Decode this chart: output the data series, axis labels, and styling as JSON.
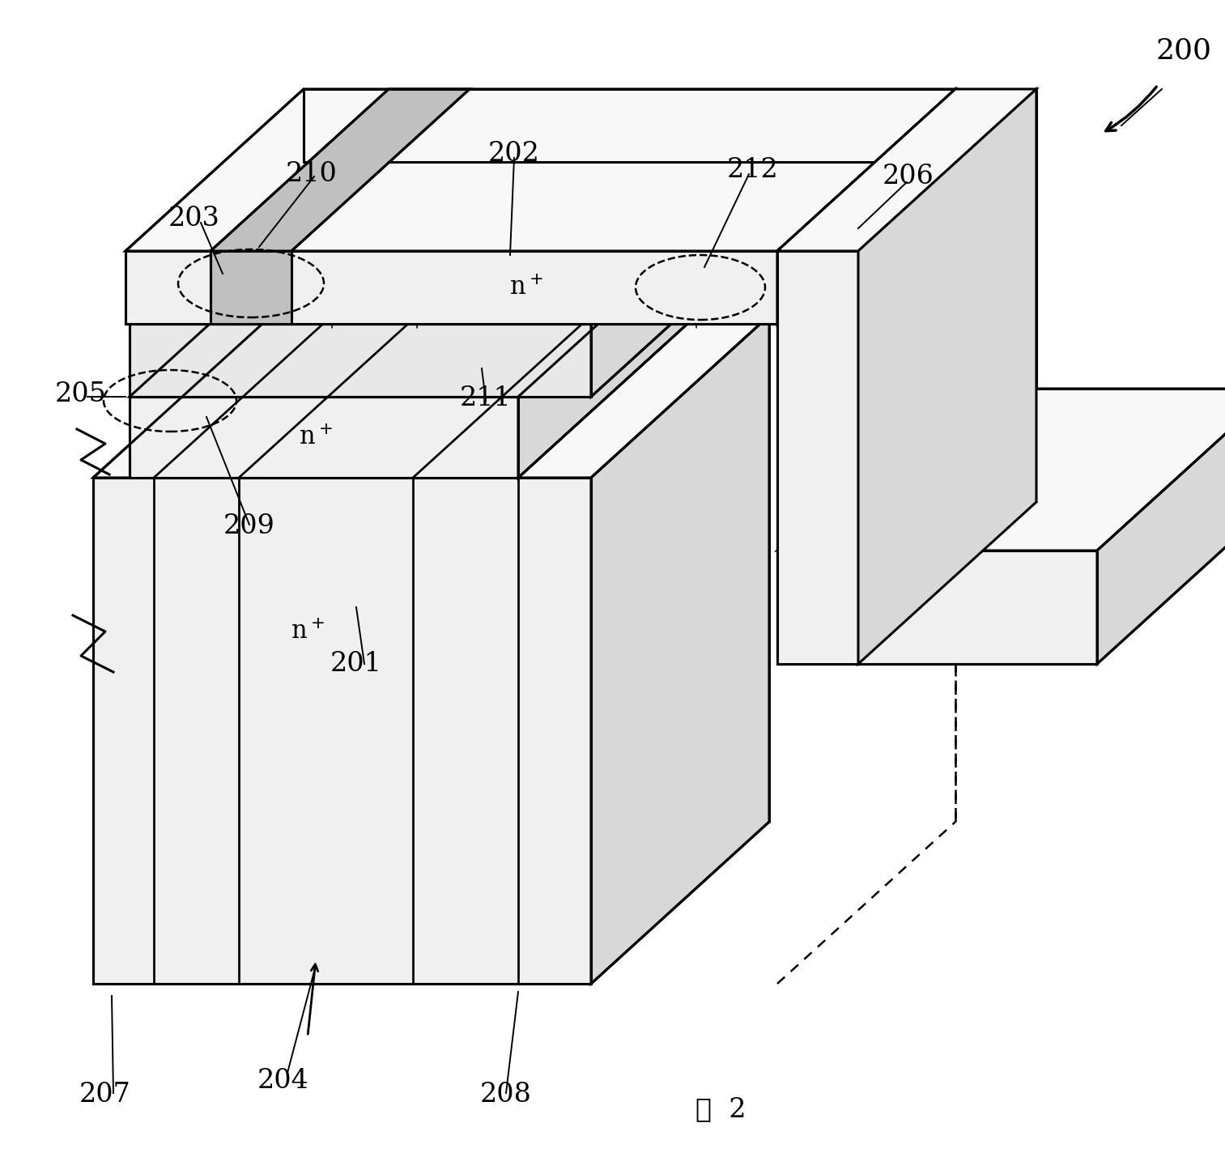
{
  "bg": "#ffffff",
  "lc": "#000000",
  "lw": 2.2,
  "lw_thin": 1.5,
  "fs_label": 24,
  "fs_small": 20,
  "fs_fig": 24,
  "gray_front": "#f0f0f0",
  "gray_top": "#f8f8f8",
  "gray_right": "#d8d8d8",
  "gray_stripe": "#c0c0c0",
  "gray_mid": "#e8e8e8"
}
